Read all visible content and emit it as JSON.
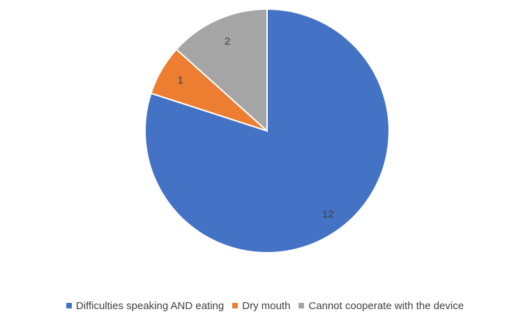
{
  "chart_data": {
    "type": "pie",
    "title": "",
    "categories": [
      "Difficulties speaking AND eating",
      "Dry mouth",
      "Cannot cooperate with the device"
    ],
    "values": [
      12,
      1,
      2
    ],
    "labels": [
      "12",
      "1",
      "2"
    ],
    "colors": [
      "#4472C4",
      "#ED7D31",
      "#A5A5A5"
    ],
    "legend_position": "bottom",
    "start_angle_deg": 0,
    "direction": "clockwise"
  }
}
